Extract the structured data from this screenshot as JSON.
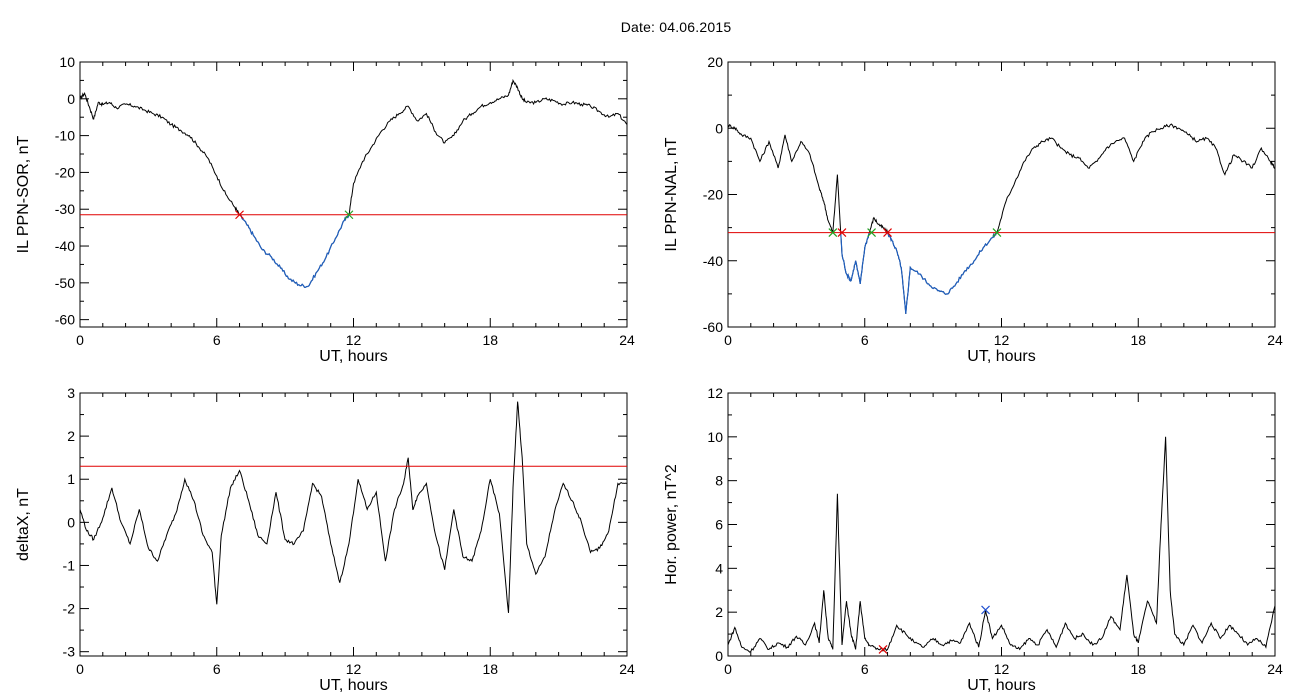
{
  "title": "Date:  04.06.2015",
  "colors": {
    "trace": "#000000",
    "below": "#1f5fbf",
    "threshold": "#e00000",
    "marker_red": "#e00000",
    "marker_green": "#22a022",
    "marker_blue": "#2050d0"
  },
  "chart_data": [
    {
      "type": "line",
      "xlabel": "UT, hours",
      "ylabel": "IL PPN-SOR, nT",
      "xlim": [
        0,
        24
      ],
      "ylim": [
        -62,
        10
      ],
      "xticks": [
        0,
        6,
        12,
        18,
        24
      ],
      "yticks": [
        10,
        0,
        -10,
        -20,
        -30,
        -40,
        -50,
        -60
      ],
      "threshold": -31.5,
      "series": [
        {
          "x": [
            0,
            0.2,
            0.4,
            0.6,
            0.8,
            1.0,
            1.3,
            1.6,
            2.0,
            2.4,
            2.8,
            3.2,
            3.6,
            4.0,
            4.4,
            4.8,
            5.2,
            5.6,
            6.0,
            6.4,
            6.8,
            7.0,
            7.3,
            7.6,
            8.0,
            8.4,
            8.8,
            9.2,
            9.6,
            10.0,
            10.4,
            10.8,
            11.2,
            11.6,
            11.8,
            12.0,
            12.4,
            12.8,
            13.2,
            13.6,
            14.0,
            14.4,
            14.8,
            15.2,
            15.6,
            16.0,
            16.4,
            16.8,
            17.2,
            17.6,
            18.0,
            18.4,
            18.8,
            19.0,
            19.2,
            19.4,
            19.6,
            20.0,
            20.4,
            20.8,
            21.2,
            21.6,
            22.0,
            22.4,
            22.8,
            23.2,
            23.6,
            24.0
          ],
          "y": [
            0,
            1.5,
            -2,
            -5.5,
            -1,
            -1.5,
            -1,
            -2.5,
            -1.5,
            -2,
            -3,
            -4,
            -5,
            -7,
            -8.5,
            -10,
            -13,
            -16,
            -21,
            -26,
            -29.5,
            -31.5,
            -34,
            -37,
            -41,
            -43,
            -46,
            -49,
            -50.5,
            -51,
            -47,
            -43,
            -38,
            -33,
            -31.5,
            -23,
            -17,
            -13,
            -9,
            -6,
            -4,
            -2,
            -6,
            -4,
            -9,
            -12,
            -10,
            -6,
            -4,
            -2,
            -1,
            0,
            1,
            5,
            3,
            0,
            -1,
            -1,
            0,
            -0.5,
            -1.5,
            -1,
            -1.5,
            -2,
            -3.5,
            -5,
            -4,
            -7
          ]
        }
      ],
      "markers": [
        {
          "x": 7.0,
          "y": -31.5,
          "color": "red"
        },
        {
          "x": 11.8,
          "y": -31.5,
          "color": "green"
        }
      ]
    },
    {
      "type": "line",
      "xlabel": "UT, hours",
      "ylabel": "IL PPN-NAL, nT",
      "xlim": [
        0,
        24
      ],
      "ylim": [
        -60,
        20
      ],
      "xticks": [
        0,
        6,
        12,
        18,
        24
      ],
      "yticks": [
        20,
        0,
        -20,
        -40,
        -60
      ],
      "threshold": -31.5,
      "series": [
        {
          "x": [
            0,
            0.3,
            0.6,
            1.0,
            1.4,
            1.8,
            2.2,
            2.5,
            2.8,
            3.2,
            3.6,
            4.0,
            4.2,
            4.4,
            4.6,
            4.8,
            5.0,
            5.2,
            5.4,
            5.6,
            5.8,
            6.0,
            6.2,
            6.4,
            6.6,
            6.8,
            7.0,
            7.2,
            7.4,
            7.6,
            7.8,
            8.0,
            8.4,
            8.8,
            9.2,
            9.6,
            10.0,
            10.4,
            10.8,
            11.2,
            11.6,
            11.8,
            12.2,
            12.6,
            13.0,
            13.4,
            13.8,
            14.2,
            14.6,
            15.0,
            15.4,
            15.8,
            16.2,
            16.6,
            17.0,
            17.4,
            17.8,
            18.2,
            18.6,
            19.0,
            19.4,
            19.8,
            20.2,
            20.6,
            21.0,
            21.4,
            21.8,
            22.2,
            22.6,
            23.0,
            23.4,
            23.8,
            24.0
          ],
          "y": [
            1,
            0,
            -2,
            -3,
            -10,
            -4,
            -12,
            -2,
            -10,
            -4,
            -8,
            -18,
            -22,
            -28,
            -31.5,
            -14,
            -38,
            -44,
            -46,
            -40,
            -47,
            -36,
            -31.5,
            -27,
            -29,
            -30,
            -31.5,
            -34,
            -37,
            -42,
            -56,
            -42,
            -44,
            -47,
            -49,
            -50,
            -47,
            -43,
            -40,
            -36,
            -33,
            -31.5,
            -22,
            -16,
            -10,
            -6,
            -4,
            -3,
            -6,
            -8,
            -9,
            -12,
            -10,
            -6,
            -4,
            -3,
            -10,
            -4,
            -1,
            0,
            1,
            0,
            -2,
            -4,
            -3,
            -6,
            -14,
            -8,
            -10,
            -12,
            -6,
            -10,
            -12
          ]
        }
      ],
      "markers": [
        {
          "x": 4.6,
          "y": -31.5,
          "color": "green"
        },
        {
          "x": 5.0,
          "y": -31.5,
          "color": "red"
        },
        {
          "x": 6.3,
          "y": -31.5,
          "color": "green"
        },
        {
          "x": 7.0,
          "y": -31.5,
          "color": "red"
        },
        {
          "x": 11.8,
          "y": -31.5,
          "color": "green"
        }
      ]
    },
    {
      "type": "line",
      "xlabel": "UT, hours",
      "ylabel": "deltaX, nT",
      "xlim": [
        0,
        24
      ],
      "ylim": [
        -3.1,
        3
      ],
      "xticks": [
        0,
        6,
        12,
        18,
        24
      ],
      "yticks": [
        3,
        2,
        1,
        0,
        -1,
        -2,
        -3
      ],
      "threshold": 1.3,
      "series": [
        {
          "x": [
            0,
            0.3,
            0.6,
            1.0,
            1.4,
            1.8,
            2.2,
            2.6,
            3.0,
            3.4,
            3.8,
            4.2,
            4.6,
            5.0,
            5.4,
            5.8,
            6.0,
            6.2,
            6.6,
            7.0,
            7.4,
            7.8,
            8.2,
            8.6,
            9.0,
            9.4,
            9.8,
            10.2,
            10.6,
            11.0,
            11.4,
            11.8,
            12.2,
            12.6,
            13.0,
            13.4,
            13.8,
            14.2,
            14.4,
            14.6,
            14.8,
            15.2,
            15.6,
            16.0,
            16.4,
            16.8,
            17.2,
            17.6,
            18.0,
            18.4,
            18.8,
            19.0,
            19.2,
            19.4,
            19.6,
            20.0,
            20.4,
            20.8,
            21.2,
            21.6,
            22.0,
            22.4,
            22.8,
            23.2,
            23.6,
            24.0
          ],
          "y": [
            0.3,
            -0.2,
            -0.4,
            0.1,
            0.8,
            0,
            -0.5,
            0.3,
            -0.6,
            -0.9,
            -0.3,
            0.2,
            1.0,
            0.5,
            -0.3,
            -0.7,
            -1.9,
            -0.3,
            0.8,
            1.2,
            0.5,
            -0.3,
            -0.5,
            0.7,
            -0.4,
            -0.5,
            -0.2,
            0.9,
            0.6,
            -0.5,
            -1.4,
            -0.5,
            1.0,
            0.3,
            0.7,
            -0.9,
            0.3,
            0.9,
            1.5,
            0.3,
            0.6,
            0.9,
            -0.3,
            -1.1,
            0.3,
            -0.8,
            -0.9,
            -0.2,
            1.0,
            0.2,
            -2.1,
            0.8,
            2.8,
            1.5,
            -0.5,
            -1.2,
            -0.8,
            0.2,
            0.9,
            0.5,
            0,
            -0.7,
            -0.6,
            -0.2,
            0.9,
            0.9
          ]
        }
      ]
    },
    {
      "type": "line",
      "xlabel": "UT, hours",
      "ylabel": "Hor. power, nT^2",
      "xlim": [
        0,
        24
      ],
      "ylim": [
        0,
        12
      ],
      "xticks": [
        0,
        6,
        12,
        18,
        24
      ],
      "yticks": [
        12,
        10,
        8,
        6,
        4,
        2,
        0
      ],
      "series": [
        {
          "x": [
            0,
            0.3,
            0.6,
            1.0,
            1.4,
            1.8,
            2.2,
            2.6,
            3.0,
            3.4,
            3.8,
            4.0,
            4.2,
            4.4,
            4.6,
            4.8,
            5.0,
            5.2,
            5.4,
            5.6,
            5.8,
            6.0,
            6.2,
            6.6,
            7.0,
            7.4,
            7.8,
            8.2,
            8.6,
            9.0,
            9.4,
            9.8,
            10.2,
            10.6,
            11.0,
            11.3,
            11.6,
            12.0,
            12.4,
            12.8,
            13.2,
            13.6,
            14.0,
            14.4,
            14.8,
            15.2,
            15.6,
            16.0,
            16.4,
            16.8,
            17.2,
            17.5,
            17.8,
            18.0,
            18.4,
            18.8,
            19.0,
            19.2,
            19.4,
            19.6,
            20.0,
            20.4,
            20.8,
            21.2,
            21.6,
            22.0,
            22.4,
            22.8,
            23.2,
            23.6,
            24.0
          ],
          "y": [
            0.5,
            1.3,
            0.4,
            0.2,
            0.8,
            0.3,
            0.6,
            0.4,
            0.9,
            0.5,
            1.5,
            0.6,
            3.0,
            0.8,
            0.3,
            7.4,
            0.5,
            2.5,
            1.0,
            0.3,
            2.5,
            0.8,
            0.5,
            0.3,
            0.3,
            1.4,
            1.0,
            0.6,
            0.4,
            0.8,
            0.5,
            0.7,
            0.6,
            1.5,
            0.4,
            2.1,
            0.8,
            1.4,
            0.5,
            0.3,
            0.8,
            0.5,
            1.2,
            0.4,
            1.5,
            0.8,
            1.0,
            0.5,
            0.8,
            1.8,
            1.2,
            3.7,
            1.0,
            0.6,
            2.5,
            1.5,
            6.0,
            10.0,
            3.0,
            1.0,
            0.5,
            1.4,
            0.6,
            1.5,
            0.8,
            1.4,
            1.0,
            0.5,
            0.8,
            0.4,
            2.3
          ]
        }
      ],
      "markers": [
        {
          "x": 6.8,
          "y": 0.3,
          "color": "red"
        },
        {
          "x": 11.3,
          "y": 2.1,
          "color": "blue"
        }
      ]
    }
  ]
}
